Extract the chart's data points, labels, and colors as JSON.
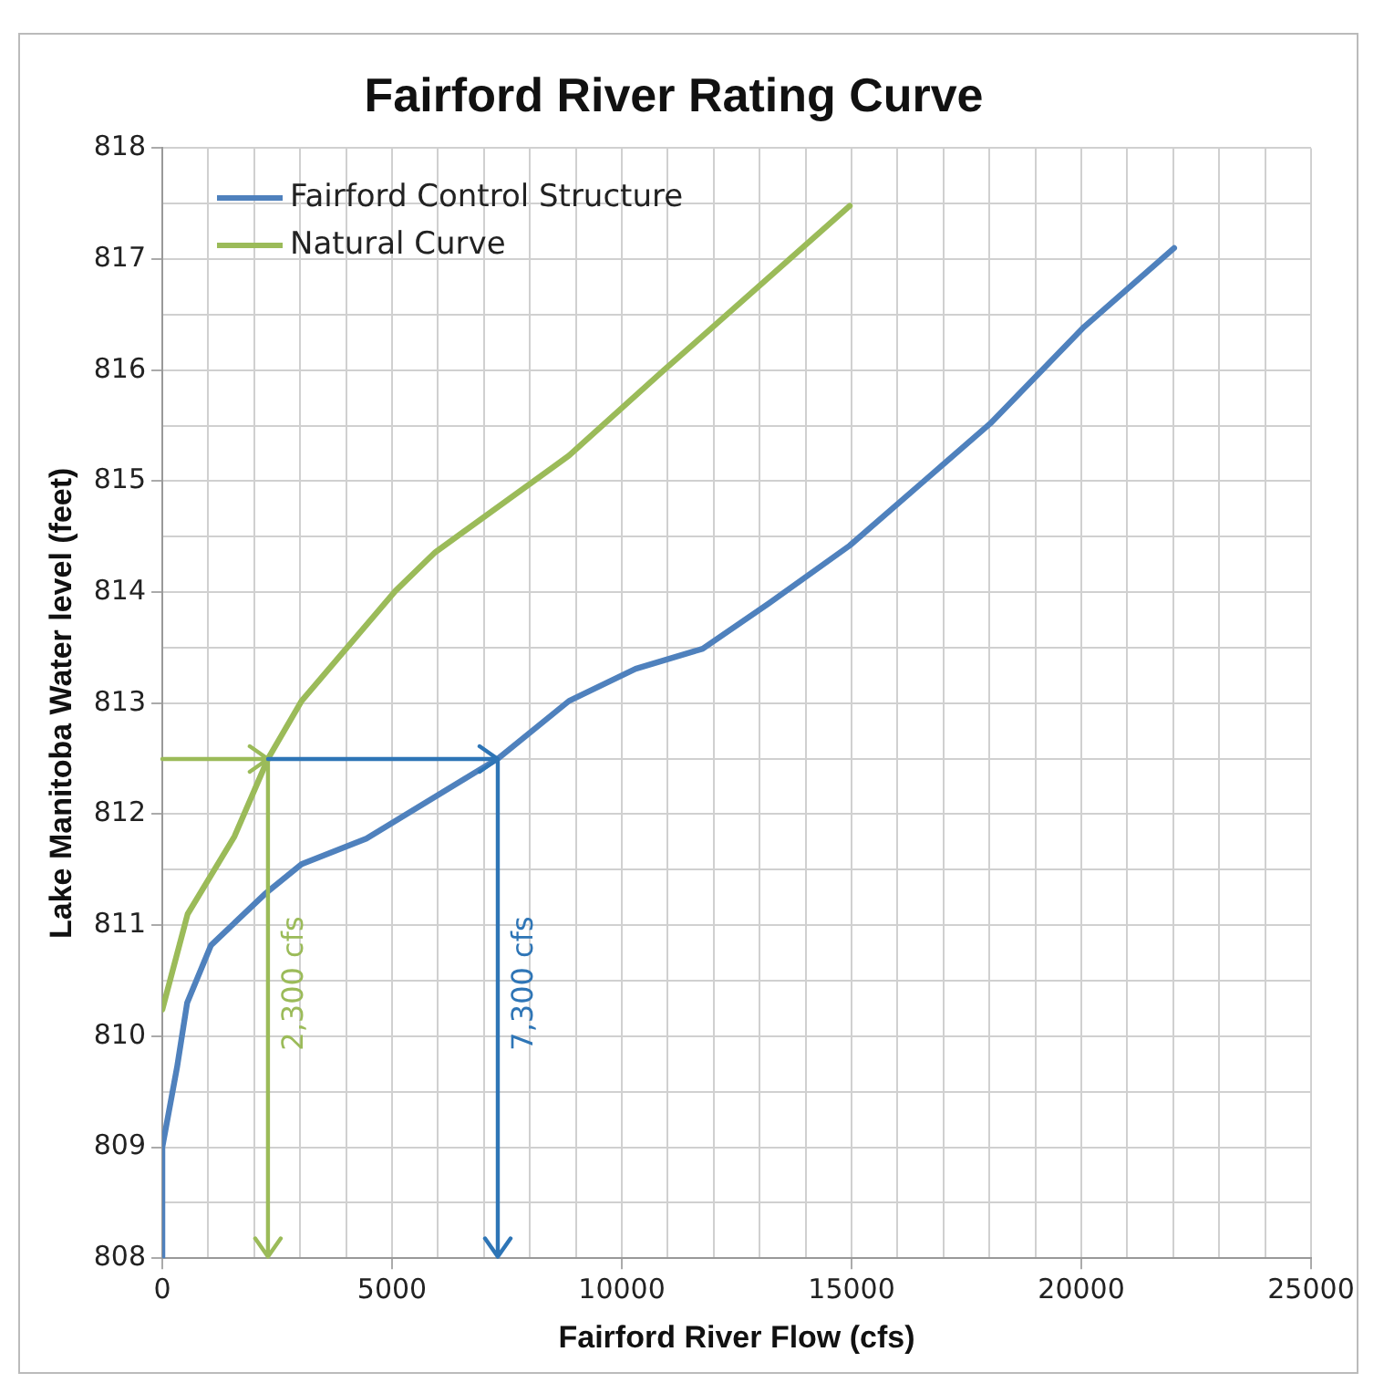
{
  "chart_data": {
    "type": "line",
    "title": "Fairford River Rating Curve",
    "xlabel": "Fairford River Flow (cfs)",
    "ylabel": "Lake Manitoba Water level (feet)",
    "series": [
      {
        "name": "Fairford Control Structure",
        "color": "#4f81bd",
        "x": [
          0,
          0,
          320,
          540,
          1060,
          2230,
          3030,
          4440,
          7300,
          8850,
          10300,
          11760,
          13200,
          14960,
          18020,
          20060,
          22020
        ],
        "values": [
          808,
          809,
          809.72,
          810.3,
          810.82,
          811.28,
          811.55,
          811.78,
          812.5,
          813.02,
          813.31,
          813.49,
          813.9,
          814.42,
          815.52,
          816.39,
          817.1
        ]
      },
      {
        "name": "Natural Curve",
        "color": "#9bbb59",
        "x": [
          0,
          550,
          1570,
          2300,
          3030,
          5070,
          5940,
          8850,
          10890,
          14960
        ],
        "values": [
          810.24,
          811.1,
          811.8,
          812.5,
          813.02,
          814.01,
          814.36,
          815.23,
          815.99,
          817.48
        ]
      }
    ],
    "ref_lines": [
      {
        "axis": "x",
        "value": 2300,
        "label": "2,300 cfs",
        "color": "#9bbb59"
      },
      {
        "axis": "x",
        "value": 7300,
        "label": "7,300 cfs",
        "color": "#2e75b6"
      }
    ],
    "xlim": [
      0,
      25000
    ],
    "xticks": [
      0,
      {
        "value": 1000,
        "label": null
      },
      {
        "value": 2000,
        "label": null
      },
      {
        "value": 3000,
        "label": null
      },
      {
        "value": 4000,
        "label": null
      },
      5000,
      {
        "value": 6000,
        "label": null
      },
      {
        "value": 7000,
        "label": null
      },
      {
        "value": 8000,
        "label": null
      },
      {
        "value": 9000,
        "label": null
      },
      10000,
      {
        "value": 11000,
        "label": null
      },
      {
        "value": 12000,
        "label": null
      },
      {
        "value": 13000,
        "label": null
      },
      {
        "value": 14000,
        "label": null
      },
      15000,
      {
        "value": 16000,
        "label": null
      },
      {
        "value": 17000,
        "label": null
      },
      {
        "value": 18000,
        "label": null
      },
      {
        "value": 19000,
        "label": null
      },
      20000,
      {
        "value": 21000,
        "label": null
      },
      {
        "value": 22000,
        "label": null
      },
      {
        "value": 23000,
        "label": null
      },
      {
        "value": 24000,
        "label": null
      },
      25000
    ],
    "ylim": [
      808,
      818
    ],
    "yticks": [
      808,
      {
        "value": 808.5,
        "label": null
      },
      809,
      {
        "value": 809.5,
        "label": null
      },
      810,
      {
        "value": 810.5,
        "label": null
      },
      811,
      {
        "value": 811.5,
        "label": null
      },
      812,
      {
        "value": 812.5,
        "label": null
      },
      813,
      {
        "value": 813.5,
        "label": null
      },
      814,
      {
        "value": 814.5,
        "label": null
      },
      815,
      {
        "value": 815.5,
        "label": null
      },
      816,
      {
        "value": 816.5,
        "label": null
      },
      817,
      {
        "value": 817.5,
        "label": null
      },
      818
    ],
    "grid": true,
    "legend": "top left",
    "marker": "none",
    "line_style": "solid"
  }
}
